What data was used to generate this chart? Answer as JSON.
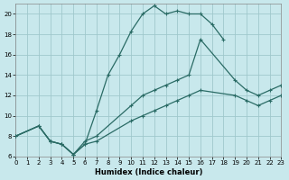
{
  "xlabel": "Humidex (Indice chaleur)",
  "bg_color": "#c8e8ec",
  "grid_color": "#a0c8cc",
  "line_color": "#2a6b65",
  "xlim": [
    0,
    23
  ],
  "ylim": [
    6,
    21
  ],
  "xticks": [
    0,
    1,
    2,
    3,
    4,
    5,
    6,
    7,
    8,
    9,
    10,
    11,
    12,
    13,
    14,
    15,
    16,
    17,
    18,
    19,
    20,
    21,
    22,
    23
  ],
  "yticks": [
    6,
    8,
    10,
    12,
    14,
    16,
    18,
    20
  ],
  "series": [
    {
      "x": [
        0,
        2,
        3,
        4,
        5,
        6,
        7,
        8,
        9,
        10,
        11,
        12,
        13,
        14,
        15,
        16,
        17,
        18
      ],
      "y": [
        8,
        9,
        7.5,
        7.2,
        6.2,
        7.2,
        10.5,
        14.0,
        16.0,
        18.3,
        20.0,
        20.8,
        20.0,
        20.3,
        20.0,
        20.0,
        19.0,
        17.5
      ]
    },
    {
      "x": [
        0,
        2,
        3,
        4,
        5,
        6,
        7,
        10,
        11,
        12,
        13,
        14,
        15,
        16,
        19,
        20,
        21,
        22,
        23
      ],
      "y": [
        8,
        9,
        7.5,
        7.2,
        6.2,
        7.5,
        8.0,
        11.0,
        12.0,
        12.5,
        13.0,
        13.5,
        14.0,
        17.5,
        13.5,
        12.5,
        12.0,
        12.5,
        13.0
      ]
    },
    {
      "x": [
        0,
        2,
        3,
        4,
        5,
        6,
        7,
        10,
        11,
        12,
        13,
        14,
        15,
        16,
        19,
        20,
        21,
        22,
        23
      ],
      "y": [
        8,
        9,
        7.5,
        7.2,
        6.2,
        7.2,
        7.5,
        9.5,
        10.0,
        10.5,
        11.0,
        11.5,
        12.0,
        12.5,
        12.0,
        11.5,
        11.0,
        11.5,
        12.0
      ]
    }
  ]
}
